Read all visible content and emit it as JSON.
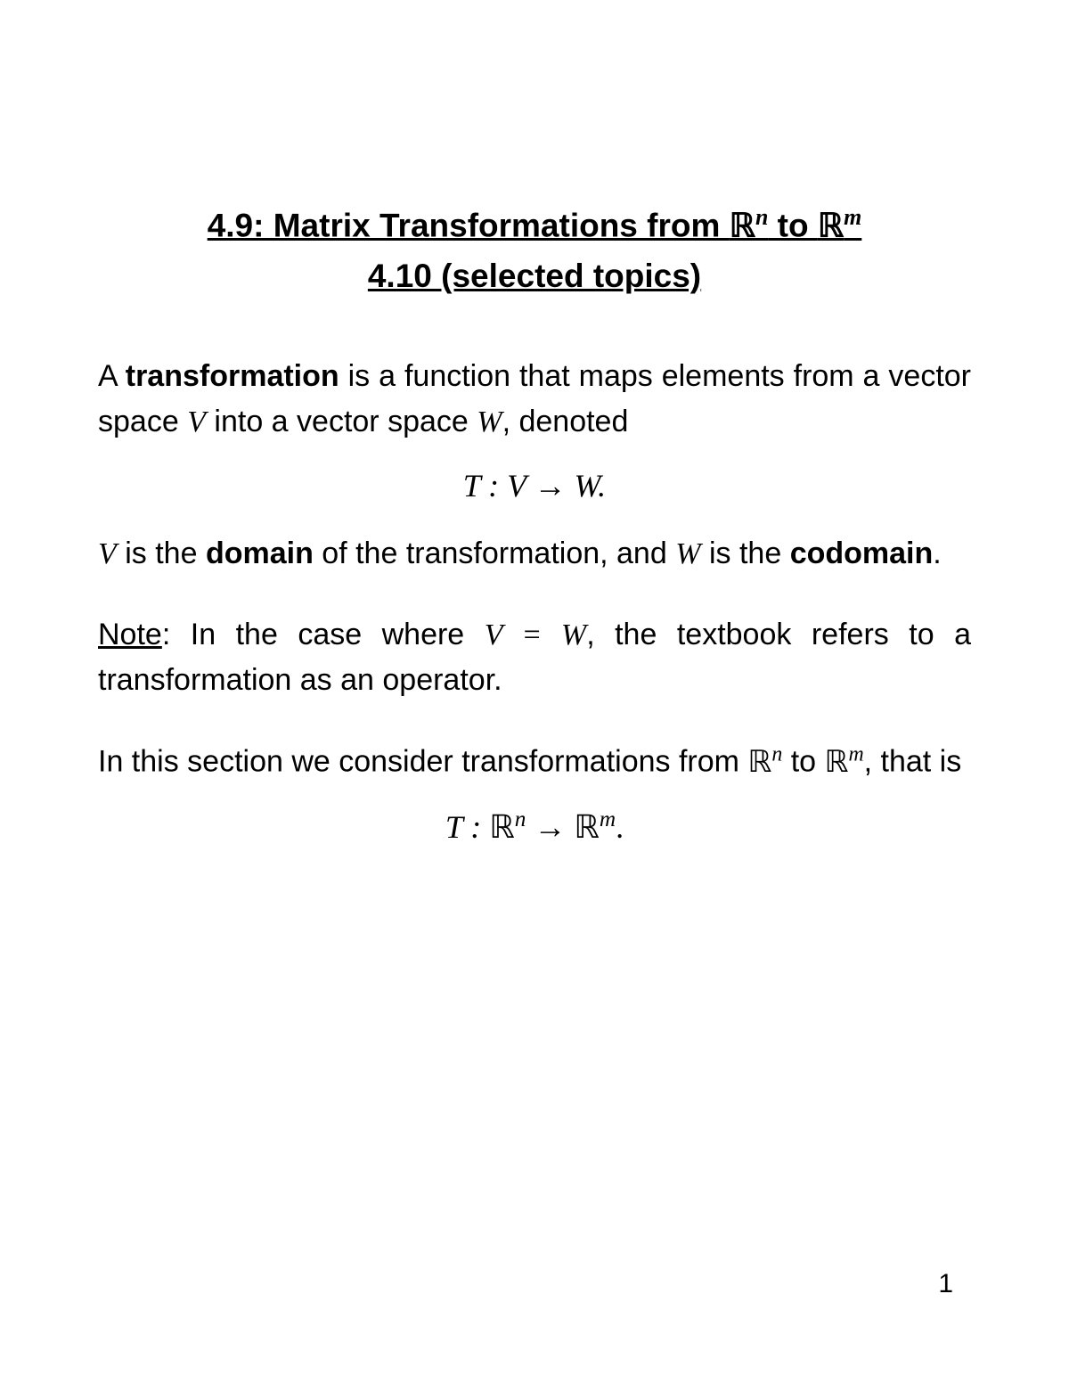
{
  "title": {
    "line1_prefix": "4.9: Matrix Transformations from ",
    "line1_r1_exp": "n",
    "line1_mid": " to ",
    "line1_r2_exp": "m",
    "line2": "4.10 (selected topics)"
  },
  "para1": {
    "t1": "A ",
    "b1": "transformation",
    "t2": " is a function that maps elements from a vector space ",
    "v": "V",
    "t3": " into a vector space ",
    "w": "W",
    "t4": ", denoted"
  },
  "display1": {
    "text": "T : V → W."
  },
  "para2": {
    "v1": "V",
    "t1": " is the ",
    "b1": "domain",
    "t2": " of the transformation, and ",
    "w1": "W",
    "t3": " is the ",
    "b2": "codomain",
    "t4": "."
  },
  "para3": {
    "u1": "Note",
    "t1": ": In the case where ",
    "eq": "V = W",
    "t2": ", the textbook refers to a transformation as an operator."
  },
  "para4": {
    "t1": "In this section we consider transformations from ",
    "exp1": "n",
    "t2": " to ",
    "exp2": "m",
    "t3": ", that is"
  },
  "display2": {
    "prefix": "T : ",
    "exp1": "n",
    "mid": " → ",
    "exp2": "m",
    "suffix": "."
  },
  "page_number": "1",
  "colors": {
    "text": "#000000",
    "background": "#ffffff"
  },
  "typography": {
    "title_fontsize": 37,
    "body_fontsize": 34,
    "display_fontsize": 36,
    "font_family_sans": "Helvetica, Arial, sans-serif",
    "font_family_serif": "Georgia, Times New Roman, serif"
  }
}
